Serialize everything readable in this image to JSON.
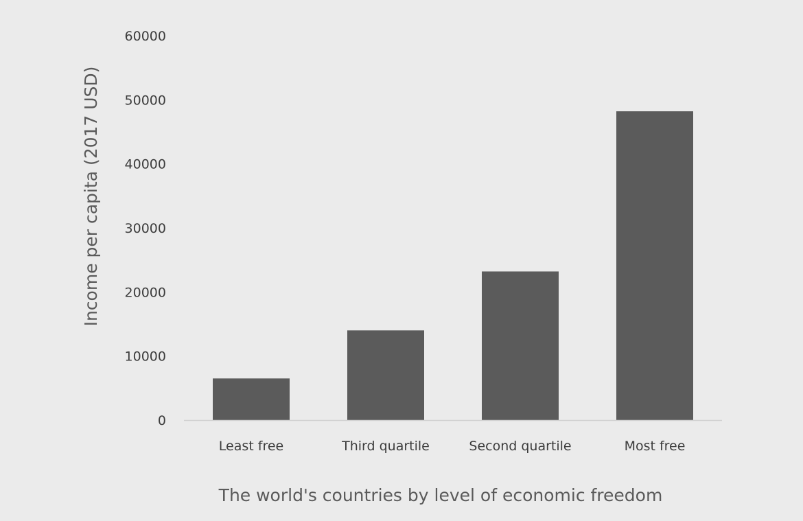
{
  "chart_data": {
    "type": "bar",
    "categories": [
      "Least free",
      "Third quartile",
      "Second quartile",
      "Most free"
    ],
    "values": [
      6500,
      14000,
      23200,
      48200
    ],
    "xlabel": "The world's countries by level of economic freedom",
    "ylabel": "Income per capita (2017 USD)",
    "ylim": [
      0,
      60000
    ],
    "yticks": [
      0,
      10000,
      20000,
      30000,
      40000,
      50000,
      60000
    ],
    "grid": false,
    "legend": "none",
    "colors": {
      "bar": "#5b5b5b",
      "background": "#ebebeb",
      "axis_line": "#d0d0d0"
    }
  }
}
